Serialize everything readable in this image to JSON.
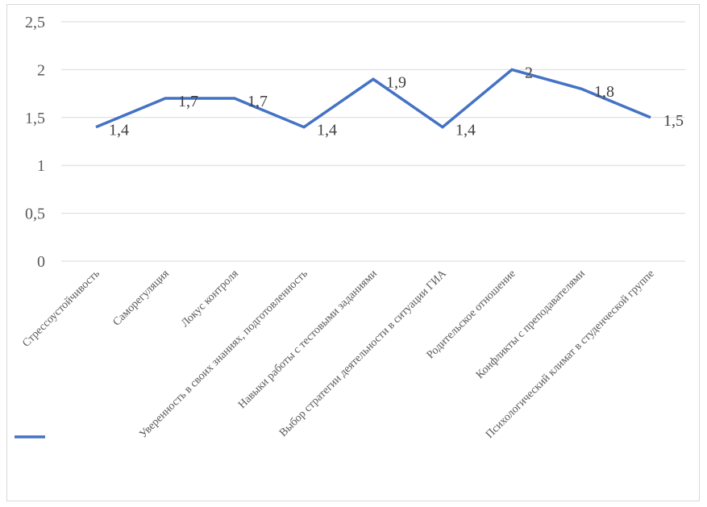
{
  "chart_data": {
    "type": "line",
    "title": "",
    "xlabel": "",
    "ylabel": "",
    "ylim": [
      0,
      2.5
    ],
    "yticks": [
      "0",
      "0,5",
      "1",
      "1,5",
      "2",
      "2,5"
    ],
    "grid": true,
    "legend": "bottom-left",
    "line_color": "#4472c4",
    "categories": [
      "Стрессоустойчивость",
      "Саморегуляция",
      "Локус контроля",
      "Уверенность в своих знаниях, подготовленность",
      "Навыки работы с тестовыми заданиями",
      "Выбор стратегии деятельности в ситуации ГИА",
      "Родительское отношение",
      "Конфликты с преподавателями",
      "Психологический климат в студенческой группе"
    ],
    "series": [
      {
        "values": [
          1.4,
          1.7,
          1.7,
          1.4,
          1.9,
          1.4,
          2,
          1.8,
          1.5
        ],
        "labels": [
          "1,4",
          "1,7",
          "1,7",
          "1,4",
          "1,9",
          "1,4",
          "2",
          "1,8",
          "1,5"
        ]
      }
    ]
  }
}
